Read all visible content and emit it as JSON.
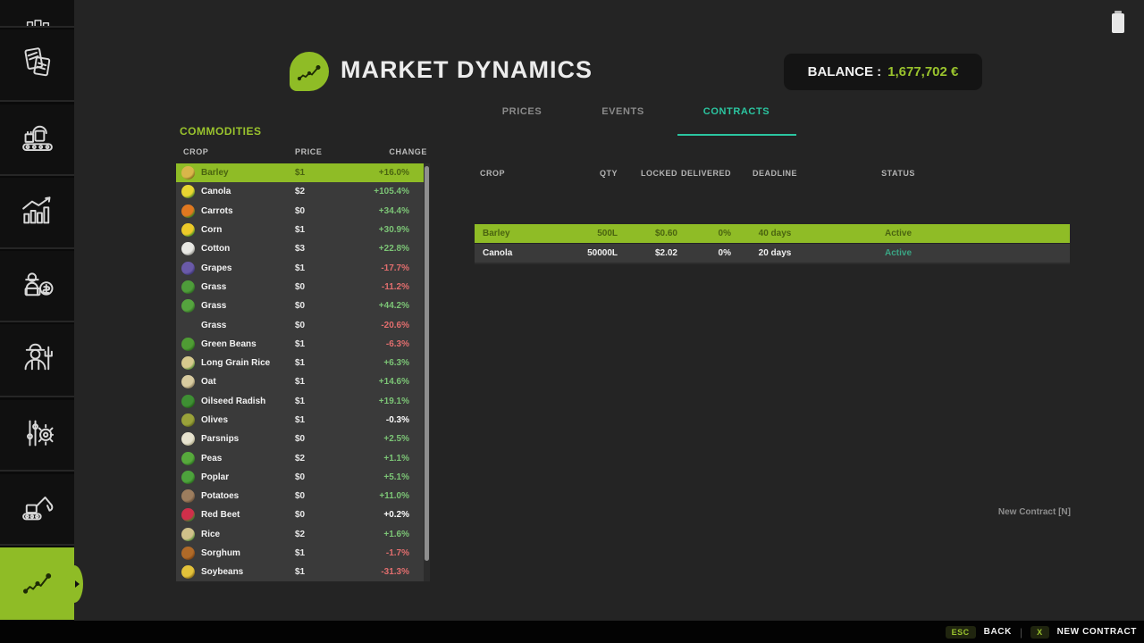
{
  "header": {
    "title": "MARKET DYNAMICS",
    "balance_label": "BALANCE :",
    "balance_value": "1,677,702 €"
  },
  "tabs": [
    {
      "label": "PRICES",
      "active": false
    },
    {
      "label": "EVENTS",
      "active": false
    },
    {
      "label": "CONTRACTS",
      "active": true
    }
  ],
  "sidebar": {
    "items": [
      {
        "id": "top-partial",
        "icon": "buildings-icon",
        "active": false
      },
      {
        "id": "documents",
        "icon": "documents-icon",
        "active": false
      },
      {
        "id": "production",
        "icon": "production-icon",
        "active": false
      },
      {
        "id": "statistics",
        "icon": "statistics-icon",
        "active": false
      },
      {
        "id": "economy",
        "icon": "farmer-economy-icon",
        "active": false
      },
      {
        "id": "farmer",
        "icon": "farmer-icon",
        "active": false
      },
      {
        "id": "settings",
        "icon": "settings-gear-icon",
        "active": false
      },
      {
        "id": "construction",
        "icon": "excavator-icon",
        "active": false
      },
      {
        "id": "market-dynamics",
        "icon": "market-trend-icon",
        "active": true
      }
    ]
  },
  "status_icons": {
    "battery": "battery-icon"
  },
  "commodities": {
    "section_title": "COMMODITIES",
    "columns": [
      "CROP",
      "PRICE",
      "CHANGE"
    ],
    "rows": [
      {
        "crop": "Barley",
        "icon": "barley-icon",
        "c1": "#d9b64a",
        "c2": "#8a7020",
        "price": "$1",
        "change": "+16.0%",
        "trend": "up",
        "selected": true
      },
      {
        "crop": "Canola",
        "icon": "canola-icon",
        "c1": "#e8d531",
        "c2": "#5a8a28",
        "price": "$2",
        "change": "+105.4%",
        "trend": "up",
        "selected": false
      },
      {
        "crop": "Carrots",
        "icon": "carrot-icon",
        "c1": "#e07820",
        "c2": "#3f7d1e",
        "price": "$0",
        "change": "+34.4%",
        "trend": "up",
        "selected": false
      },
      {
        "crop": "Corn",
        "icon": "corn-icon",
        "c1": "#ecc929",
        "c2": "#4e8f23",
        "price": "$1",
        "change": "+30.9%",
        "trend": "up",
        "selected": false
      },
      {
        "crop": "Cotton",
        "icon": "cotton-icon",
        "c1": "#e8e8e4",
        "c2": "#9a9a94",
        "price": "$3",
        "change": "+22.8%",
        "trend": "up",
        "selected": false
      },
      {
        "crop": "Grapes",
        "icon": "grapes-icon",
        "c1": "#6a5aa8",
        "c2": "#3d3575",
        "price": "$1",
        "change": "-17.7%",
        "trend": "down",
        "selected": false
      },
      {
        "crop": "Grass",
        "icon": "grass-icon",
        "c1": "#4e9c3a",
        "c2": "#2f6b22",
        "price": "$0",
        "change": "-11.2%",
        "trend": "down",
        "selected": false
      },
      {
        "crop": "Grass",
        "icon": "grass-bush-icon",
        "c1": "#55a43e",
        "c2": "#356f26",
        "price": "$0",
        "change": "+44.2%",
        "trend": "up",
        "selected": false
      },
      {
        "crop": "Grass",
        "icon": null,
        "c1": null,
        "c2": null,
        "price": "$0",
        "change": "-20.6%",
        "trend": "down",
        "selected": false
      },
      {
        "crop": "Green Beans",
        "icon": "green-beans-icon",
        "c1": "#4f9c34",
        "c2": "#2e6e1d",
        "price": "$1",
        "change": "-6.3%",
        "trend": "down",
        "selected": false
      },
      {
        "crop": "Long Grain Rice",
        "icon": "long-grain-rice-icon",
        "c1": "#d6c98e",
        "c2": "#5f8f3a",
        "price": "$1",
        "change": "+6.3%",
        "trend": "up",
        "selected": false
      },
      {
        "crop": "Oat",
        "icon": "oat-icon",
        "c1": "#d8cba0",
        "c2": "#8f8260",
        "price": "$1",
        "change": "+14.6%",
        "trend": "up",
        "selected": false
      },
      {
        "crop": "Oilseed Radish",
        "icon": "oilseed-radish-icon",
        "c1": "#3e8f33",
        "c2": "#246318",
        "price": "$1",
        "change": "+19.1%",
        "trend": "up",
        "selected": false
      },
      {
        "crop": "Olives",
        "icon": "olives-icon",
        "c1": "#9aa23a",
        "c2": "#646c1e",
        "price": "$1",
        "change": "-0.3%",
        "trend": "flat",
        "selected": false
      },
      {
        "crop": "Parsnips",
        "icon": "parsnip-icon",
        "c1": "#e7e3cf",
        "c2": "#b2ad8e",
        "price": "$0",
        "change": "+2.5%",
        "trend": "up",
        "selected": false
      },
      {
        "crop": "Peas",
        "icon": "peas-icon",
        "c1": "#57a93c",
        "c2": "#2f7522",
        "price": "$2",
        "change": "+1.1%",
        "trend": "up",
        "selected": false
      },
      {
        "crop": "Poplar",
        "icon": "poplar-leaf-icon",
        "c1": "#4da33c",
        "c2": "#2c6e1f",
        "price": "$0",
        "change": "+5.1%",
        "trend": "up",
        "selected": false
      },
      {
        "crop": "Potatoes",
        "icon": "potato-icon",
        "c1": "#9c7d5e",
        "c2": "#6b523a",
        "price": "$0",
        "change": "+11.0%",
        "trend": "up",
        "selected": false
      },
      {
        "crop": "Red Beet",
        "icon": "red-beet-icon",
        "c1": "#cf2f4a",
        "c2": "#3f7d2a",
        "price": "$0",
        "change": "+0.2%",
        "trend": "flat",
        "selected": false
      },
      {
        "crop": "Rice",
        "icon": "rice-icon",
        "c1": "#cfc18a",
        "c2": "#5e8f3c",
        "price": "$2",
        "change": "+1.6%",
        "trend": "up",
        "selected": false
      },
      {
        "crop": "Sorghum",
        "icon": "sorghum-icon",
        "c1": "#b06a28",
        "c2": "#7a4416",
        "price": "$1",
        "change": "-1.7%",
        "trend": "down",
        "selected": false
      },
      {
        "crop": "Soybeans",
        "icon": "soybeans-icon",
        "c1": "#e3c23a",
        "c2": "#8a6d1a",
        "price": "$1",
        "change": "-31.3%",
        "trend": "down",
        "selected": false
      }
    ]
  },
  "contracts": {
    "columns": [
      "CROP",
      "QTY",
      "LOCKED",
      "DELIVERED",
      "DEADLINE",
      "STATUS"
    ],
    "rows": [
      {
        "crop": "Barley",
        "qty": "500L",
        "locked": "$0.60",
        "delivered": "0%",
        "deadline": "40 days",
        "status": "Active",
        "selected": true
      },
      {
        "crop": "Canola",
        "qty": "50000L",
        "locked": "$2.02",
        "delivered": "0%",
        "deadline": "20 days",
        "status": "Active",
        "selected": false
      }
    ],
    "new_contract_hint": "New Contract [N]"
  },
  "bottom_bar": {
    "back_key": "ESC",
    "back_label": "BACK",
    "divider": "|",
    "new_contract_key": "X",
    "new_contract_label": "NEW CONTRACT"
  },
  "colors": {
    "accent": "#8fbc26",
    "accent_text": "#9ac32d",
    "tab_active": "#2bc5a0",
    "positive": "#7cc576",
    "negative": "#e26e6e",
    "neutral": "#ffffff",
    "selected_text": "#4a6410",
    "status_active": "#3aa584"
  }
}
